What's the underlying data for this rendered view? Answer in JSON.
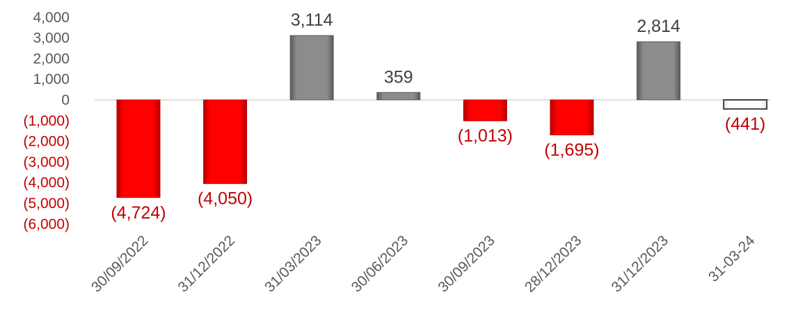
{
  "chart_data": {
    "type": "bar",
    "categories": [
      "30/09/2022",
      "31/12/2022",
      "31/03/2023",
      "30/06/2023",
      "30/09/2023",
      "28/12/2023",
      "31/12/2023",
      "31-03-24"
    ],
    "values": [
      -4724,
      -4050,
      3114,
      359,
      -1013,
      -1695,
      2814,
      -441
    ],
    "data_labels": [
      "(4,724)",
      "(4,050)",
      "3,114",
      "359",
      "(1,013)",
      "(1,695)",
      "2,814",
      "(441)"
    ],
    "yticks": [
      {
        "value": 4000,
        "label": "4,000"
      },
      {
        "value": 3000,
        "label": "3,000"
      },
      {
        "value": 2000,
        "label": "2,000"
      },
      {
        "value": 1000,
        "label": "1,000"
      },
      {
        "value": 0,
        "label": "0"
      },
      {
        "value": -1000,
        "label": "(1,000)"
      },
      {
        "value": -2000,
        "label": "(2,000)"
      },
      {
        "value": -3000,
        "label": "(3,000)"
      },
      {
        "value": -4000,
        "label": "(4,000)"
      },
      {
        "value": -5000,
        "label": "(5,000)"
      },
      {
        "value": -6000,
        "label": "(6,000)"
      }
    ],
    "ylim": [
      -6000,
      4000
    ],
    "grid": false,
    "legend": "none",
    "bar_styles": [
      "red",
      "red",
      "gray",
      "gray",
      "red",
      "red",
      "gray",
      "white"
    ],
    "colors": {
      "negative": "#ff0000",
      "negative_dark": "#c00000",
      "positive": "#8c8c8c",
      "positive_dark": "#5a5a5a",
      "outline": "#404040",
      "neg_text": "#c00000",
      "pos_text": "#404040",
      "axis_line": "#bfbfbf"
    }
  }
}
